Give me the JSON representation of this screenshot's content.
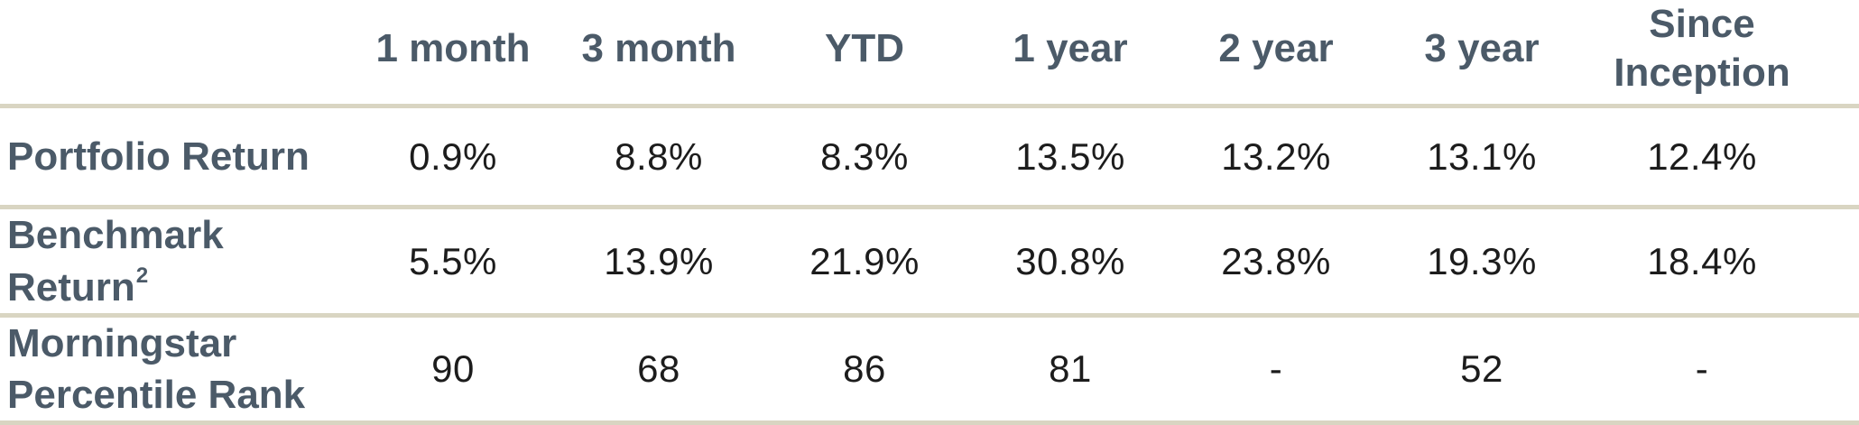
{
  "table": {
    "columns": [
      "1 month",
      "3 month",
      "YTD",
      "1 year",
      "2 year",
      "3 year",
      "Since Inception"
    ],
    "rows": [
      {
        "label": "Portfolio Return",
        "values": [
          "0.9%",
          "8.8%",
          "8.3%",
          "13.5%",
          "13.2%",
          "13.1%",
          "12.4%"
        ]
      },
      {
        "label_line1": "Benchmark",
        "label_line2": "Return",
        "label_superscript": "2",
        "values": [
          "5.5%",
          "13.9%",
          "21.9%",
          "30.8%",
          "23.8%",
          "19.3%",
          "18.4%"
        ]
      },
      {
        "label_line1": "Morningstar",
        "label_line2": "Percentile Rank",
        "values": [
          "90",
          "68",
          "86",
          "81",
          "-",
          "52",
          "-"
        ]
      }
    ],
    "colors": {
      "heading_text": "#4b5a68",
      "value_text": "#1c1c1c",
      "divider": "#d9d5c2",
      "background": "#ffffff"
    }
  }
}
